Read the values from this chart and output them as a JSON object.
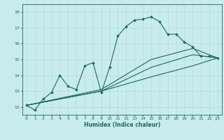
{
  "title": "",
  "xlabel": "Humidex (Indice chaleur)",
  "xlim": [
    -0.5,
    23.5
  ],
  "ylim": [
    11.5,
    18.5
  ],
  "yticks": [
    12,
    13,
    14,
    15,
    16,
    17,
    18
  ],
  "xticks": [
    0,
    1,
    2,
    3,
    4,
    5,
    6,
    7,
    8,
    9,
    10,
    11,
    12,
    13,
    14,
    15,
    16,
    17,
    18,
    19,
    20,
    21,
    22,
    23
  ],
  "line_color": "#1a6b5a",
  "bg_color": "#c8ecec",
  "grid_color": "#b0d8d8",
  "lines": [
    {
      "x": [
        0,
        1,
        2,
        3,
        4,
        5,
        6,
        7,
        8,
        9,
        10,
        11,
        12,
        13,
        14,
        15,
        16,
        17,
        18,
        19,
        20,
        21,
        22,
        23
      ],
      "y": [
        12.1,
        11.8,
        12.5,
        12.9,
        14.0,
        13.3,
        13.1,
        14.6,
        14.8,
        12.9,
        14.5,
        16.5,
        17.1,
        17.5,
        17.55,
        17.7,
        17.4,
        16.6,
        16.6,
        16.1,
        15.8,
        15.2,
        15.2,
        15.1
      ],
      "markers": true
    },
    {
      "x": [
        0,
        9,
        15,
        20,
        23
      ],
      "y": [
        12.1,
        13.1,
        15.0,
        15.7,
        15.1
      ],
      "markers": false
    },
    {
      "x": [
        0,
        9,
        15,
        20,
        23
      ],
      "y": [
        12.1,
        13.0,
        14.5,
        15.3,
        15.1
      ],
      "markers": false
    },
    {
      "x": [
        0,
        9,
        15,
        20,
        23
      ],
      "y": [
        12.1,
        13.0,
        13.9,
        14.6,
        15.1
      ],
      "markers": false
    }
  ]
}
